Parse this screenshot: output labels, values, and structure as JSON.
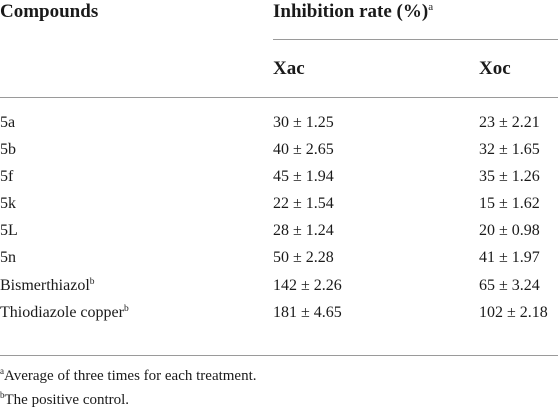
{
  "header": {
    "compounds": "Compounds",
    "inhibition_rate": "Inhibition rate (%)",
    "inhibition_rate_mark": "a",
    "xac": "Xac",
    "xoc": "Xoc"
  },
  "rows": [
    {
      "compound": "5a",
      "mark": "",
      "xac": "30 ± 1.25",
      "xoc": "23 ± 2.21"
    },
    {
      "compound": "5b",
      "mark": "",
      "xac": "40 ± 2.65",
      "xoc": "32 ± 1.65"
    },
    {
      "compound": "5f",
      "mark": "",
      "xac": "45 ± 1.94",
      "xoc": "35 ± 1.26"
    },
    {
      "compound": "5k",
      "mark": "",
      "xac": "22 ± 1.54",
      "xoc": "15 ± 1.62"
    },
    {
      "compound": "5L",
      "mark": "",
      "xac": "28 ± 1.24",
      "xoc": "20 ± 0.98"
    },
    {
      "compound": "5n",
      "mark": "",
      "xac": "50 ± 2.28",
      "xoc": "41 ± 1.97"
    },
    {
      "compound": "Bismerthiazol",
      "mark": "b",
      "xac": "142 ± 2.26",
      "xoc": "65 ± 3.24"
    },
    {
      "compound": "Thiodiazole copper",
      "mark": "b",
      "xac": "181 ± 4.65",
      "xoc": "102 ± 2.18"
    }
  ],
  "footnotes": [
    {
      "mark": "a",
      "text": "Average of three times for each treatment."
    },
    {
      "mark": "b",
      "text": "The positive control."
    }
  ]
}
